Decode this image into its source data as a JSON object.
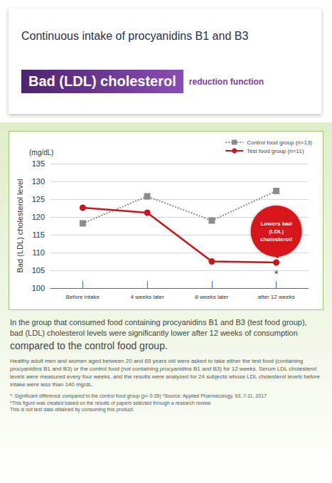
{
  "header": {
    "title": "Continuous intake of procyanidins B1 and B3",
    "banner": "Bad (LDL) cholesterol",
    "banner_suffix": "reduction function"
  },
  "chart_data": {
    "type": "line",
    "y_axis_label": "Bad (LDL) cholesterol level",
    "y_unit": "(mg/dL)",
    "categories": [
      "Before intake",
      "4 weeks later",
      "8 weeks later",
      "after 12 weeks"
    ],
    "series": [
      {
        "name": "Control food group (n=13)",
        "color": "#8c8c8c",
        "line_style": "dotted",
        "marker": "square",
        "values": [
          118.2,
          125.8,
          119.0,
          127.3
        ]
      },
      {
        "name": "Test food group (n=11)",
        "color": "#c8161d",
        "line_style": "solid",
        "marker": "circle",
        "values": [
          122.6,
          121.2,
          107.5,
          107.2
        ]
      }
    ],
    "ylim": [
      100,
      135
    ],
    "yticks": [
      100,
      105,
      110,
      115,
      120,
      125,
      130,
      135
    ],
    "grid": true,
    "legend": "top-right",
    "annotations": [
      {
        "text": "Lowers bad (LDL) cholesterol!",
        "category": "after 12 weeks",
        "series": "Test food group (n=11)"
      },
      {
        "text": "*",
        "category": "after 12 weeks",
        "series": "Test food group (n=11)"
      }
    ]
  },
  "body_text": {
    "summary": "In the group that consumed food containing procyanidins B1 and B3 (test food group), bad (LDL) cholesterol levels were significantly lower after 12 weeks of consumption",
    "summary_emphasis": "compared to the control food group.",
    "method": "Healthy adult men and women aged between 20 and 65 years old were asked to take either the test food (containing procyanidins B1 and B3) or the control food (not containing procyanidins B1 and B3) for 12 weeks. Serum LDL cholesterol levels were measured every four weeks, and the results were analyzed for 24 subjects whose LDL cholesterol levels before intake were less than 140 mg/dL.",
    "footnotes": [
      "*: Significant difference compared to the control food group (p< 0.05) *Source: Applied Pharmacology, 93, 7-11, 2017",
      "*This figure was created based on the results of papers selected through a research review.",
      "This is not test data obtained by consuming this product."
    ]
  }
}
